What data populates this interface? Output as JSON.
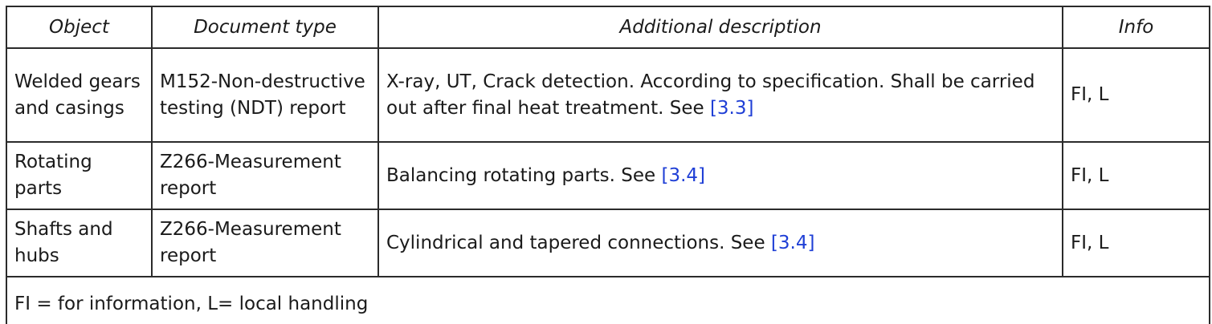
{
  "table": {
    "headers": [
      "Object",
      "Document type",
      "Additional description",
      "Info"
    ],
    "rows": [
      {
        "object": "Welded gears and casings",
        "document_type": "M152-Non-destructive testing (NDT) report",
        "description": "X-ray, UT, Crack detection. According to specification. Shall be carried out after final heat treatment. See",
        "reference": "[3.3]",
        "info": "FI, L"
      },
      {
        "object": "Rotating parts",
        "document_type": "Z266-Measurement report",
        "description": "Balancing rotating parts. See",
        "reference": "[3.4]",
        "info": "FI, L"
      },
      {
        "object": "Shafts and hubs",
        "document_type": "Z266-Measurement report",
        "description": "Cylindrical and tapered connections. See",
        "reference": "[3.4]",
        "info": "FI, L"
      }
    ],
    "footnote": "FI = for information, L= local handling"
  },
  "colors": {
    "border": "#2b2b2b",
    "link": "#1f3fd6",
    "text": "#1a1a1a",
    "background": "#ffffff"
  }
}
